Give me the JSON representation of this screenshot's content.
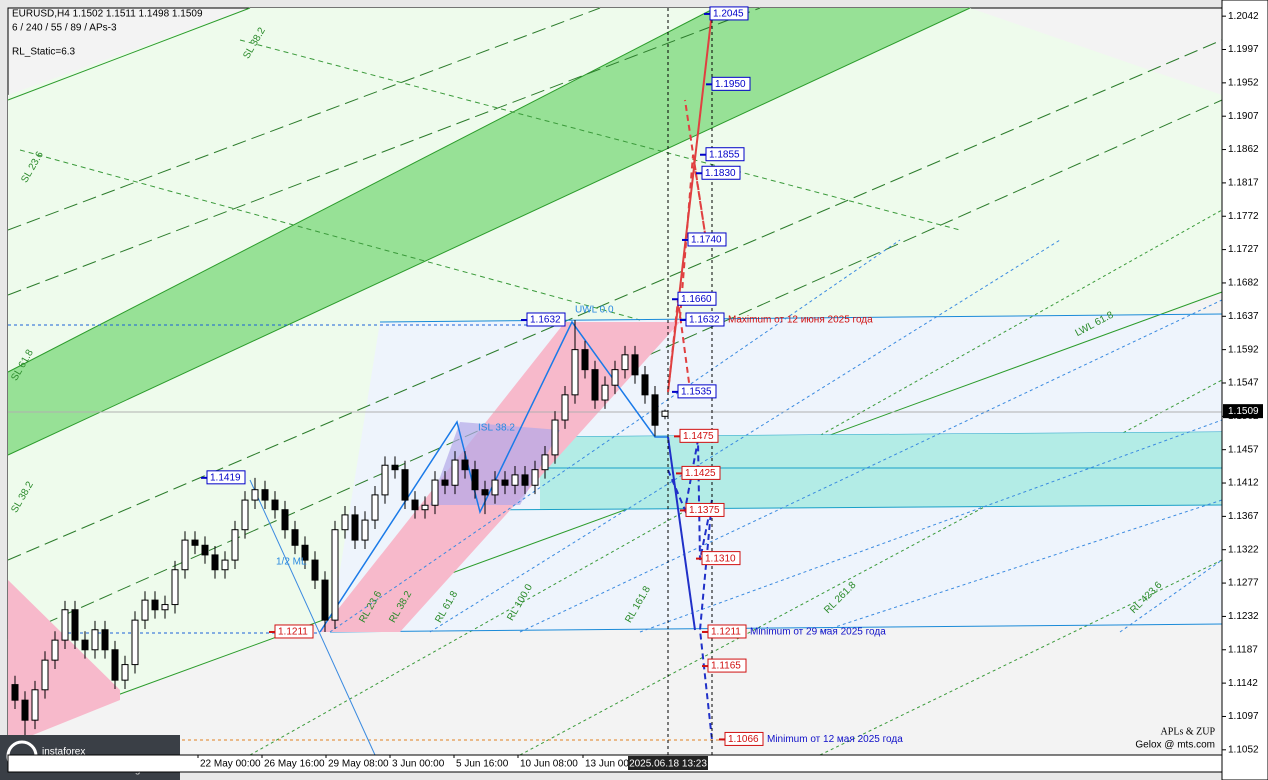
{
  "header": {
    "symbol_line": "EURUSD,H4  1.1502 1.1511 1.1498 1.1509",
    "params": "6 / 240 / 55 / 89 / APs-3",
    "static": "RL_Static=6.3"
  },
  "chart_data": {
    "type": "candlestick",
    "ylim": [
      1.1045,
      1.2053
    ],
    "yticks": [
      1.2042,
      1.1997,
      1.1952,
      1.1907,
      1.1862,
      1.1817,
      1.1772,
      1.1727,
      1.1682,
      1.1637,
      1.1592,
      1.1547,
      1.1502,
      1.1457,
      1.1412,
      1.1367,
      1.1322,
      1.1277,
      1.1232,
      1.1187,
      1.1142,
      1.1097,
      1.1052
    ],
    "time_labels": [
      "22 May 00:00",
      "26 May 16:00",
      "29 May 08:00",
      "3 Jun 00:00",
      "5 Jun 16:00",
      "10 Jun 08:00",
      "13 Jun 00:00"
    ],
    "cursor_time": "2025.06.18 13:23",
    "up_color": "#ffffff",
    "down_color": "#000000",
    "ohlc": [
      [
        1.114,
        1.1152,
        1.1107,
        1.1119
      ],
      [
        1.1119,
        1.1131,
        1.1066,
        1.1092
      ],
      [
        1.1092,
        1.1145,
        1.108,
        1.1133
      ],
      [
        1.1133,
        1.1185,
        1.1121,
        1.1173
      ],
      [
        1.1173,
        1.1212,
        1.1161,
        1.12
      ],
      [
        1.12,
        1.1253,
        1.1188,
        1.1241
      ],
      [
        1.1241,
        1.1253,
        1.1188,
        1.12
      ],
      [
        1.12,
        1.1212,
        1.1175,
        1.1187
      ],
      [
        1.1187,
        1.1226,
        1.1175,
        1.1214
      ],
      [
        1.1214,
        1.1226,
        1.1175,
        1.1187
      ],
      [
        1.1187,
        1.1199,
        1.1134,
        1.1146
      ],
      [
        1.1146,
        1.1179,
        1.1134,
        1.1167
      ],
      [
        1.1167,
        1.1239,
        1.1155,
        1.1227
      ],
      [
        1.1227,
        1.1266,
        1.1215,
        1.1254
      ],
      [
        1.1254,
        1.1266,
        1.1229,
        1.1241
      ],
      [
        1.1241,
        1.126,
        1.1229,
        1.1248
      ],
      [
        1.1248,
        1.1307,
        1.1236,
        1.1295
      ],
      [
        1.1295,
        1.1347,
        1.1283,
        1.1335
      ],
      [
        1.1335,
        1.1347,
        1.1316,
        1.1328
      ],
      [
        1.1328,
        1.134,
        1.1303,
        1.1315
      ],
      [
        1.1315,
        1.1327,
        1.1283,
        1.1295
      ],
      [
        1.1295,
        1.132,
        1.1283,
        1.1308
      ],
      [
        1.1308,
        1.1361,
        1.1296,
        1.1349
      ],
      [
        1.1349,
        1.1401,
        1.1337,
        1.1389
      ],
      [
        1.1389,
        1.1419,
        1.1377,
        1.1403
      ],
      [
        1.1403,
        1.1415,
        1.1377,
        1.1389
      ],
      [
        1.1389,
        1.1401,
        1.1364,
        1.1376
      ],
      [
        1.1376,
        1.1388,
        1.1337,
        1.1349
      ],
      [
        1.1349,
        1.1361,
        1.1316,
        1.1328
      ],
      [
        1.1328,
        1.134,
        1.1296,
        1.1308
      ],
      [
        1.1308,
        1.132,
        1.1269,
        1.1281
      ],
      [
        1.1281,
        1.1293,
        1.1211,
        1.1227
      ],
      [
        1.1227,
        1.1361,
        1.1215,
        1.1349
      ],
      [
        1.1349,
        1.1381,
        1.1337,
        1.1369
      ],
      [
        1.1369,
        1.1381,
        1.1323,
        1.1335
      ],
      [
        1.1335,
        1.1374,
        1.1323,
        1.1362
      ],
      [
        1.1362,
        1.1408,
        1.135,
        1.1396
      ],
      [
        1.1396,
        1.1448,
        1.1384,
        1.1436
      ],
      [
        1.1436,
        1.1448,
        1.1418,
        1.143
      ],
      [
        1.143,
        1.1442,
        1.1377,
        1.1389
      ],
      [
        1.1389,
        1.1401,
        1.1364,
        1.1376
      ],
      [
        1.1376,
        1.1394,
        1.1364,
        1.1382
      ],
      [
        1.1382,
        1.1428,
        1.137,
        1.1416
      ],
      [
        1.1416,
        1.1428,
        1.1397,
        1.1409
      ],
      [
        1.1409,
        1.1455,
        1.1397,
        1.1443
      ],
      [
        1.1443,
        1.1455,
        1.1418,
        1.143
      ],
      [
        1.143,
        1.1442,
        1.1391,
        1.1403
      ],
      [
        1.1403,
        1.1415,
        1.137,
        1.1396
      ],
      [
        1.1396,
        1.1428,
        1.1384,
        1.1416
      ],
      [
        1.1416,
        1.1428,
        1.1397,
        1.1409
      ],
      [
        1.1409,
        1.1435,
        1.1397,
        1.1423
      ],
      [
        1.1423,
        1.1435,
        1.1397,
        1.1409
      ],
      [
        1.1409,
        1.1442,
        1.1397,
        1.143
      ],
      [
        1.143,
        1.1462,
        1.1418,
        1.145
      ],
      [
        1.145,
        1.1509,
        1.1438,
        1.1497
      ],
      [
        1.1497,
        1.1543,
        1.1485,
        1.1531
      ],
      [
        1.1531,
        1.1632,
        1.1519,
        1.1592
      ],
      [
        1.1592,
        1.1604,
        1.1553,
        1.1565
      ],
      [
        1.1565,
        1.1577,
        1.1512,
        1.1524
      ],
      [
        1.1524,
        1.1556,
        1.1512,
        1.1544
      ],
      [
        1.1544,
        1.1577,
        1.1532,
        1.1565
      ],
      [
        1.1565,
        1.1597,
        1.1553,
        1.1585
      ],
      [
        1.1585,
        1.1597,
        1.1546,
        1.1558
      ],
      [
        1.1558,
        1.157,
        1.1519,
        1.1531
      ],
      [
        1.1531,
        1.1543,
        1.1475,
        1.149
      ],
      [
        1.1502,
        1.1511,
        1.1498,
        1.1509
      ]
    ],
    "levels": [
      {
        "value": 1.2045,
        "label": "1.2045",
        "color": "#0000c8"
      },
      {
        "value": 1.195,
        "label": "1.1950",
        "color": "#0000c8"
      },
      {
        "value": 1.1855,
        "label": "1.1855",
        "color": "#0000c8"
      },
      {
        "value": 1.183,
        "label": "1.1830",
        "color": "#0000c8"
      },
      {
        "value": 1.174,
        "label": "1.1740",
        "color": "#0000c8"
      },
      {
        "value": 1.166,
        "label": "1.1660",
        "color": "#0000c8"
      },
      {
        "value": 1.1632,
        "label": "1.1632",
        "color": "#0000c8",
        "note": "Maximum от 12 июня 2025 года",
        "note_color": "#d01010"
      },
      {
        "value": 1.1535,
        "label": "1.1535",
        "color": "#0000c8"
      },
      {
        "value": 1.1475,
        "label": "1.1475",
        "color": "#d01010"
      },
      {
        "value": 1.1425,
        "label": "1.1425",
        "color": "#d01010"
      },
      {
        "value": 1.1375,
        "label": "1.1375",
        "color": "#d01010"
      },
      {
        "value": 1.131,
        "label": "1.1310",
        "color": "#d01010"
      },
      {
        "value": 1.1211,
        "label": "1.1211",
        "color": "#d01010",
        "note": "Minimum от 29 мая 2025 года",
        "note_color": "#1010c8"
      },
      {
        "value": 1.1165,
        "label": "1.1165",
        "color": "#d01010"
      },
      {
        "value": 1.1066,
        "label": "1.1066",
        "color": "#d01010",
        "note": "Minimum от 12 мая 2025 года",
        "note_color": "#1010c8"
      },
      {
        "value": 1.1632,
        "label": "1.1632",
        "color": "#0000c8"
      },
      {
        "value": 1.1419,
        "label": "1.1419",
        "color": "#0000c8"
      },
      {
        "value": 1.1211,
        "label": "1.1211",
        "color": "#d01010"
      }
    ],
    "fork_labels": [
      "UWL 0.0",
      "ISL 38.2",
      "1/2 ML",
      "LWL 61.8",
      "SL 61.8",
      "SL 38.2",
      "SL 23.6",
      "SL 38.2",
      "RL 23.6",
      "RL 38.2",
      "RL 61.8",
      "RL 100.0",
      "RL 161.8",
      "RL 261.8",
      "RL 423.6"
    ]
  },
  "watermark": {
    "title": "APLs & ZUP",
    "author": "Gelox @ mts.com"
  },
  "logo": {
    "name": "instaforex",
    "tagline": "Instant Forex Trading"
  }
}
